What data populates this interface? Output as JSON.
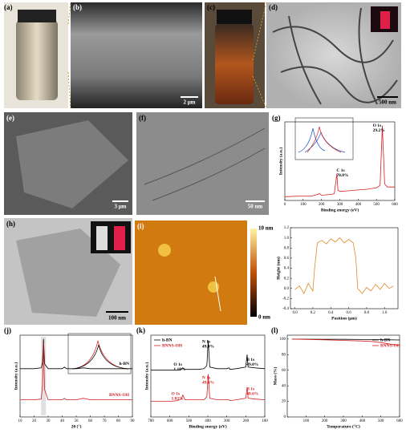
{
  "panels": {
    "a": {
      "label": "(a)"
    },
    "b": {
      "label": "(b)",
      "scale": "2 μm"
    },
    "c": {
      "label": "(c)"
    },
    "d": {
      "label": "(d)",
      "scale": "500 nm"
    },
    "e": {
      "label": "(e)",
      "scale": "3 μm"
    },
    "f": {
      "label": "(f)",
      "scale": "50 nm"
    },
    "g": {
      "label": "(g)"
    },
    "h": {
      "label": "(h)",
      "scale": "100 nm"
    },
    "i": {
      "label": "(i)",
      "colorbar_top": "10 nm",
      "colorbar_bottom": "0 nm"
    },
    "j": {
      "label": "(j)"
    },
    "k": {
      "label": "(k)"
    },
    "l": {
      "label": "(l)"
    }
  },
  "chart_data": [
    {
      "type": "line",
      "xlabel": "Binding energy (eV)",
      "ylabel": "Intensity (a.u.)",
      "x": [
        0,
        100,
        150,
        190,
        200,
        250,
        270,
        284,
        290,
        300,
        350,
        400,
        450,
        500,
        520,
        532,
        545,
        560,
        600
      ],
      "series": [
        {
          "name": "BNNS-OH",
          "color": "#d42020",
          "values": [
            5,
            6,
            6,
            9,
            7,
            8,
            9,
            35,
            14,
            12,
            13,
            14,
            15,
            17,
            20,
            100,
            22,
            18,
            18
          ]
        }
      ],
      "xlim": [
        0,
        600
      ],
      "ylim": [
        0,
        105
      ],
      "xticks": [
        0,
        100,
        200,
        300,
        400,
        500,
        600
      ],
      "annotations": [
        {
          "text": [
            "C 1s",
            "70.8%"
          ],
          "color": "#000"
        },
        {
          "text": [
            "O 1s",
            "29.2%"
          ],
          "color": "#000"
        }
      ]
    },
    {
      "type": "line",
      "xlabel": "Position (μm)",
      "ylabel": "Height (nm)",
      "x": [
        0,
        0.05,
        0.1,
        0.15,
        0.2,
        0.22,
        0.25,
        0.3,
        0.35,
        0.4,
        0.45,
        0.5,
        0.55,
        0.6,
        0.65,
        0.68,
        0.7,
        0.75,
        0.8,
        0.85,
        0.9,
        0.95,
        1.0,
        1.05,
        1.1
      ],
      "series": [
        {
          "name": "height",
          "color": "#e08a2a",
          "values": [
            -0.02,
            0.05,
            -0.1,
            0.1,
            -0.05,
            0.4,
            0.9,
            0.95,
            0.88,
            0.98,
            0.92,
            1.0,
            0.9,
            0.97,
            0.9,
            0.6,
            0.0,
            -0.1,
            0.02,
            -0.05,
            0.08,
            -0.02,
            0.1,
            0.0,
            0.05
          ]
        }
      ],
      "xlim": [
        -0.05,
        1.15
      ],
      "ylim": [
        -0.4,
        1.2
      ],
      "xticks": [
        {
          "value": 0,
          "label": "0.0"
        },
        0.2,
        0.4,
        0.6,
        0.8,
        {
          "value": 1,
          "label": "1.0"
        }
      ],
      "yticks": [
        -0.4,
        -0.2,
        {
          "value": 0,
          "label": "0.0"
        },
        0.2,
        0.4,
        0.6,
        0.8,
        {
          "value": 1,
          "label": "1.0"
        },
        1.2
      ],
      "legend": "none"
    },
    {
      "type": "line",
      "xlabel": "2θ (°)",
      "ylabel": "Intensity (a.u.)",
      "x": [
        10,
        20,
        25,
        26,
        26.7,
        27.5,
        30,
        40,
        41.6,
        43,
        50,
        55,
        60,
        70,
        76,
        80,
        90
      ],
      "series": [
        {
          "name": "h-BN",
          "color": "#000",
          "values": [
            62,
            62,
            63,
            70,
            100,
            68,
            62,
            62,
            64,
            62,
            62,
            63,
            62,
            62,
            62,
            62,
            62
          ]
        },
        {
          "name": "BNNS-OH",
          "color": "#d42020",
          "values": [
            22,
            22,
            23,
            40,
            95,
            35,
            22,
            22,
            24,
            22,
            22,
            24,
            22,
            22,
            22,
            22,
            22
          ]
        }
      ],
      "xlim": [
        10,
        90
      ],
      "ylim": [
        0,
        105
      ],
      "xticks": [
        10,
        20,
        30,
        40,
        50,
        60,
        70,
        80,
        90
      ],
      "legend": "inline"
    },
    {
      "type": "line",
      "xlabel": "Binding energy (eV)",
      "ylabel": "Intensity (a.u.)",
      "x": [
        700,
        600,
        560,
        540,
        532,
        520,
        450,
        420,
        405,
        398,
        390,
        350,
        300,
        288,
        284,
        250,
        200,
        193,
        188,
        150,
        100
      ],
      "series": [
        {
          "name": "h-BN",
          "color": "#000",
          "values": [
            60,
            60,
            60,
            61,
            63,
            61,
            61,
            62,
            66,
            98,
            64,
            62,
            62,
            63,
            61,
            62,
            64,
            80,
            64,
            63,
            62
          ]
        },
        {
          "name": "BNNS-OH",
          "color": "#d42020",
          "values": [
            20,
            20,
            21,
            23,
            28,
            22,
            22,
            22,
            26,
            55,
            24,
            22,
            22,
            22,
            21,
            22,
            24,
            38,
            24,
            23,
            22
          ]
        }
      ],
      "xlim": [
        700,
        100
      ],
      "ylim": [
        0,
        105
      ],
      "xticks": [
        700,
        600,
        500,
        400,
        300,
        200,
        100
      ],
      "legend": "upper left",
      "annotations": [
        {
          "text": [
            "N 1s",
            "49.9%"
          ],
          "color": "#000"
        },
        {
          "text": [
            "B 1s",
            "49.0%"
          ],
          "color": "#000"
        },
        {
          "text": [
            "O 1s",
            "1.10%"
          ],
          "color": "#000"
        },
        {
          "text": [
            "N 1s",
            "49.6%"
          ],
          "color": "#d42020"
        },
        {
          "text": [
            "B 1s",
            "48.6%"
          ],
          "color": "#d42020"
        },
        {
          "text": [
            "O 1s",
            "1.82%"
          ],
          "color": "#d42020"
        }
      ]
    },
    {
      "type": "line",
      "xlabel": "Temperature (°C)",
      "ylabel": "Mass (%)",
      "x": [
        25,
        100,
        200,
        300,
        400,
        450,
        500,
        550,
        600
      ],
      "series": [
        {
          "name": "h-BN",
          "color": "#000",
          "values": [
            100,
            99.9,
            99.8,
            99.6,
            99.4,
            99.3,
            99.2,
            99,
            98.8
          ]
        },
        {
          "name": "BNNS-OH",
          "color": "#d42020",
          "values": [
            100,
            99.5,
            99,
            98.3,
            97.5,
            97,
            95.5,
            93.5,
            92
          ]
        }
      ],
      "xlim": [
        0,
        600
      ],
      "ylim": [
        0,
        105
      ],
      "xticks": [
        100,
        200,
        300,
        400,
        500,
        600
      ],
      "yticks": [
        0,
        20,
        40,
        60,
        80,
        100
      ],
      "legend": "upper right"
    }
  ]
}
